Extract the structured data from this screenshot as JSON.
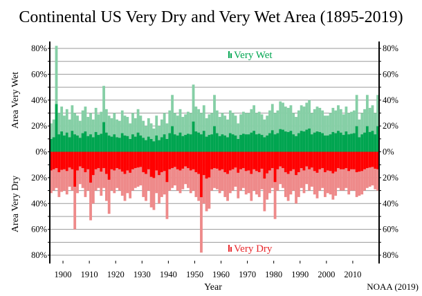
{
  "title": "Continental US Very Dry and Very Wet Area (1895-2019)",
  "chart_data": {
    "type": "bar",
    "title": "Continental US Very Dry and Very Wet Area (1895-2019)",
    "xlabel": "Year",
    "ylabel_top": "Area Very Wet",
    "ylabel_bottom": "Area Very Dry",
    "source": "NOAA (2019)",
    "xlim": [
      1895,
      2020
    ],
    "ylim": [
      -80,
      80
    ],
    "x_ticks": [
      1900,
      1910,
      1920,
      1930,
      1940,
      1950,
      1960,
      1970,
      1980,
      1990,
      2000,
      2010
    ],
    "y_ticks": [
      80,
      60,
      40,
      20,
      0,
      -20,
      -40,
      -60,
      -80
    ],
    "y_tick_labels": [
      "80%",
      "60%",
      "40%",
      "20%",
      "0%",
      "20%",
      "40%",
      "60%",
      "80%"
    ],
    "grid": true,
    "colors": {
      "wet": "#00a550",
      "wet_light": "#86cfa6",
      "dry": "#ff0000",
      "dry_light": "#ee8a8a"
    },
    "legend": [
      {
        "name": "Very Wet",
        "color": "#00a550",
        "placement": "top-center"
      },
      {
        "name": "Very Dry",
        "color": "#e8262a",
        "placement": "bottom-center"
      }
    ],
    "years_start": 1895,
    "series": [
      {
        "name": "Very Wet",
        "unit": "% area (annual peak, approx.)",
        "values": [
          22,
          25,
          82,
          30,
          35,
          28,
          33,
          25,
          36,
          30,
          28,
          24,
          32,
          35,
          27,
          30,
          25,
          34,
          29,
          31,
          51,
          33,
          28,
          26,
          30,
          25,
          24,
          32,
          28,
          27,
          22,
          30,
          26,
          33,
          28,
          24,
          20,
          26,
          22,
          18,
          28,
          20,
          25,
          30,
          22,
          32,
          44,
          30,
          28,
          33,
          27,
          29,
          31,
          30,
          52,
          35,
          33,
          30,
          36,
          26,
          29,
          30,
          44,
          32,
          27,
          30,
          28,
          25,
          32,
          30,
          28,
          22,
          29,
          31,
          30,
          30,
          33,
          36,
          30,
          31,
          29,
          25,
          28,
          32,
          37,
          30,
          32,
          39,
          38,
          35,
          34,
          36,
          30,
          27,
          32,
          36,
          35,
          38,
          40,
          30,
          33,
          35,
          34,
          32,
          28,
          28,
          30,
          34,
          32,
          36,
          33,
          29,
          35,
          30,
          31,
          32,
          44,
          25,
          30,
          33,
          44,
          34,
          36,
          30,
          44
        ]
      },
      {
        "name": "Very Dry",
        "unit": "% area (annual peak, approx.)",
        "values": [
          32,
          30,
          28,
          35,
          31,
          30,
          33,
          27,
          30,
          60,
          32,
          25,
          28,
          35,
          30,
          53,
          40,
          30,
          28,
          34,
          28,
          38,
          48,
          30,
          32,
          28,
          30,
          34,
          38,
          32,
          36,
          30,
          28,
          27,
          26,
          35,
          38,
          30,
          43,
          45,
          32,
          40,
          35,
          33,
          52,
          30,
          28,
          26,
          30,
          32,
          29,
          25,
          28,
          32,
          30,
          35,
          38,
          78,
          40,
          46,
          44,
          30,
          28,
          29,
          32,
          30,
          35,
          38,
          32,
          30,
          27,
          36,
          30,
          28,
          33,
          32,
          38,
          30,
          33,
          35,
          29,
          46,
          37,
          32,
          28,
          52,
          30,
          25,
          28,
          35,
          38,
          33,
          30,
          40,
          35,
          28,
          32,
          25,
          30,
          27,
          33,
          36,
          30,
          28,
          35,
          32,
          33,
          37,
          34,
          28,
          30,
          30,
          28,
          33,
          30,
          30,
          35,
          34,
          33,
          30,
          28,
          27,
          26,
          29,
          30
        ]
      }
    ]
  }
}
